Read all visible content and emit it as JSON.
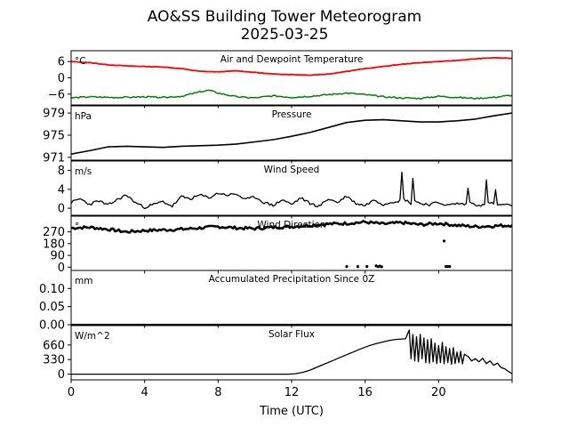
{
  "figure": {
    "title_line1": "AO&SS Building Tower Meteorogram",
    "title_line2": "2025-03-25",
    "xlabel": "Time (UTC)",
    "xticks": [
      0,
      4,
      8,
      12,
      16,
      20
    ],
    "xlim": [
      0,
      24
    ]
  },
  "colors": {
    "temperature": "#ff0000",
    "dewpoint": "#008000",
    "default": "#000000"
  },
  "chart_data": [
    {
      "id": "temp",
      "type": "line",
      "title": "Air and Dewpoint Temperature",
      "unit": "°C",
      "ylim": [
        -10,
        10
      ],
      "yticks": [
        6,
        0,
        -6
      ],
      "ytick_labels": [
        "6",
        "0",
        "−6"
      ],
      "series": [
        {
          "color_key": "temperature",
          "linewidth": 1.8,
          "x": [
            0,
            1,
            2,
            3,
            4,
            5,
            6,
            7,
            8,
            9,
            10,
            11,
            12,
            13,
            14,
            15,
            16,
            17,
            18,
            19,
            20,
            21,
            22,
            23,
            24
          ],
          "y": [
            6,
            5.6,
            4.8,
            4.4,
            4.2,
            4.0,
            3.4,
            2.4,
            2.2,
            2.6,
            2.0,
            1.4,
            1.2,
            1.0,
            1.4,
            2.4,
            3.4,
            4.2,
            5.0,
            5.6,
            6.0,
            6.4,
            7.0,
            7.4,
            7.2
          ]
        },
        {
          "color_key": "dewpoint",
          "linewidth": 1.5,
          "x": [
            0,
            1,
            2,
            3,
            4,
            5,
            6,
            6.5,
            7,
            7.5,
            8,
            9,
            10,
            11,
            12,
            13,
            14,
            15,
            16,
            17,
            18,
            19,
            20,
            21,
            22,
            23,
            24
          ],
          "y": [
            -7.4,
            -7.0,
            -7.2,
            -7.2,
            -7.0,
            -7.2,
            -6.8,
            -6.0,
            -5.2,
            -4.6,
            -5.6,
            -7.0,
            -7.4,
            -6.6,
            -7.2,
            -6.8,
            -6.2,
            -5.6,
            -6.2,
            -7.0,
            -7.4,
            -7.6,
            -6.8,
            -7.2,
            -7.6,
            -7.2,
            -6.4
          ]
        }
      ]
    },
    {
      "id": "pres",
      "type": "line",
      "title": "Pressure",
      "unit": "hPa",
      "ylim": [
        970.5,
        980.3
      ],
      "yticks": [
        979,
        975,
        971
      ],
      "ytick_labels": [
        "979",
        "975",
        "971"
      ],
      "series": [
        {
          "color_key": "default",
          "linewidth": 1.6,
          "x": [
            0,
            1,
            2,
            3,
            4,
            5,
            6,
            7,
            8,
            9,
            10,
            11,
            12,
            13,
            14,
            15,
            16,
            17,
            18,
            19,
            20,
            21,
            22,
            23,
            24
          ],
          "y": [
            971.6,
            972.2,
            972.9,
            973.0,
            972.9,
            972.8,
            973.0,
            973.1,
            973.2,
            973.4,
            973.8,
            974.2,
            974.8,
            975.5,
            976.4,
            977.3,
            977.7,
            977.8,
            977.6,
            977.4,
            977.4,
            977.6,
            977.9,
            978.5,
            979.0
          ]
        }
      ]
    },
    {
      "id": "wspd",
      "type": "line",
      "title": "Wind Speed",
      "unit": "m/s",
      "ylim": [
        -1.5,
        10
      ],
      "yticks": [
        8,
        4,
        0
      ],
      "ytick_labels": [
        "8",
        "4",
        "0"
      ],
      "series": [
        {
          "color_key": "default",
          "linewidth": 1.3,
          "x": [
            0,
            0.5,
            1,
            1.5,
            2,
            2.5,
            3,
            3.5,
            4,
            4.5,
            5,
            5.5,
            6,
            6.5,
            7,
            7.5,
            8,
            8.5,
            9,
            9.5,
            10,
            10.5,
            11,
            11.5,
            12,
            12.5,
            13,
            13.5,
            14,
            14.5,
            15,
            15.5,
            16,
            16.5,
            17,
            17.5,
            17.9,
            18.0,
            18.1,
            18.5,
            18.6,
            18.7,
            19,
            19.5,
            20,
            20.5,
            21,
            21.5,
            21.6,
            21.7,
            22,
            22.5,
            22.6,
            22.7,
            23,
            23.1,
            23.2,
            23.5,
            24
          ],
          "y": [
            1.2,
            2.0,
            0.8,
            1.6,
            0.6,
            1.8,
            2.8,
            1.2,
            0.2,
            0.8,
            1.4,
            0.4,
            2.4,
            2.0,
            2.8,
            2.2,
            3.2,
            2.8,
            3.0,
            1.8,
            2.4,
            1.2,
            0.6,
            1.8,
            0.8,
            2.2,
            1.0,
            0.4,
            2.0,
            1.2,
            2.6,
            1.0,
            0.6,
            1.8,
            0.8,
            1.4,
            1.6,
            7.6,
            2.0,
            1.0,
            6.4,
            1.6,
            1.0,
            0.8,
            1.2,
            0.6,
            1.0,
            0.8,
            4.4,
            1.2,
            0.8,
            0.6,
            5.8,
            1.4,
            0.8,
            4.0,
            0.6,
            0.8,
            0.4
          ]
        }
      ]
    },
    {
      "id": "wdir",
      "type": "scatter",
      "title": "Wind Direction",
      "unit": "°",
      "ylim": [
        -25,
        390
      ],
      "yticks": [
        270,
        180,
        90,
        0
      ],
      "ytick_labels": [
        "270",
        "180",
        "90",
        "0"
      ],
      "series": [
        {
          "color_key": "default",
          "mode": "dense-band",
          "x": [
            0,
            1,
            2,
            3,
            4,
            5,
            6,
            7,
            8,
            9,
            10,
            11,
            12,
            13,
            14,
            15,
            16,
            17,
            18,
            19,
            20,
            21,
            22,
            23,
            24
          ],
          "y": [
            300,
            305,
            290,
            270,
            280,
            285,
            290,
            300,
            310,
            300,
            295,
            305,
            310,
            320,
            330,
            335,
            345,
            330,
            340,
            325,
            335,
            320,
            310,
            315,
            320
          ]
        },
        {
          "color_key": "default",
          "mode": "points",
          "x": [
            15.0,
            15.6,
            16.1,
            16.6,
            16.7,
            16.8,
            16.9,
            20.4,
            20.5,
            20.6,
            20.3
          ],
          "y": [
            5,
            5,
            5,
            10,
            4,
            8,
            3,
            5,
            5,
            5,
            200
          ]
        }
      ]
    },
    {
      "id": "precip",
      "type": "line",
      "title": "Accumulated Precipitation Since 0Z",
      "unit": "mm",
      "ylim": [
        0,
        0.15
      ],
      "yticks": [
        0.1,
        0.05,
        0.0
      ],
      "ytick_labels": [
        "0.10",
        "0.05",
        "0.00"
      ],
      "series": [
        {
          "color_key": "default",
          "linewidth": 2.0,
          "x": [
            0,
            24
          ],
          "y": [
            0,
            0
          ]
        }
      ]
    },
    {
      "id": "solar",
      "type": "line",
      "title": "Solar Flux",
      "unit": "W/m^2",
      "ylim": [
        -130,
        1100
      ],
      "yticks": [
        660,
        330,
        0
      ],
      "ytick_labels": [
        "660",
        "330",
        "0"
      ],
      "series": [
        {
          "color_key": "default",
          "linewidth": 1.3,
          "x": [
            0,
            11.8,
            12.2,
            12.6,
            13.0,
            13.4,
            13.8,
            14.2,
            14.6,
            15.0,
            15.4,
            15.8,
            16.2,
            16.6,
            17.0,
            17.4,
            17.8,
            18.2,
            18.4,
            18.5,
            18.6,
            18.7,
            18.8,
            18.9,
            19.0,
            19.1,
            19.2,
            19.3,
            19.4,
            19.5,
            19.6,
            19.7,
            19.8,
            19.9,
            20.0,
            20.1,
            20.2,
            20.3,
            20.4,
            20.5,
            20.6,
            20.7,
            20.8,
            20.9,
            21.0,
            21.1,
            21.2,
            21.3,
            21.4,
            21.6,
            21.8,
            22.0,
            22.2,
            22.4,
            22.6,
            22.8,
            23.0,
            23.2,
            23.4,
            23.6,
            23.8,
            24
          ],
          "y": [
            0,
            0,
            10,
            40,
            90,
            160,
            230,
            300,
            370,
            440,
            510,
            580,
            640,
            690,
            730,
            770,
            790,
            800,
            1000,
            350,
            900,
            300,
            850,
            280,
            900,
            350,
            820,
            260,
            780,
            250,
            800,
            280,
            700,
            240,
            650,
            260,
            720,
            230,
            620,
            260,
            580,
            220,
            600,
            240,
            500,
            260,
            520,
            230,
            450,
            400,
            300,
            350,
            280,
            360,
            240,
            300,
            200,
            250,
            150,
            120,
            60,
            10
          ]
        }
      ]
    }
  ]
}
